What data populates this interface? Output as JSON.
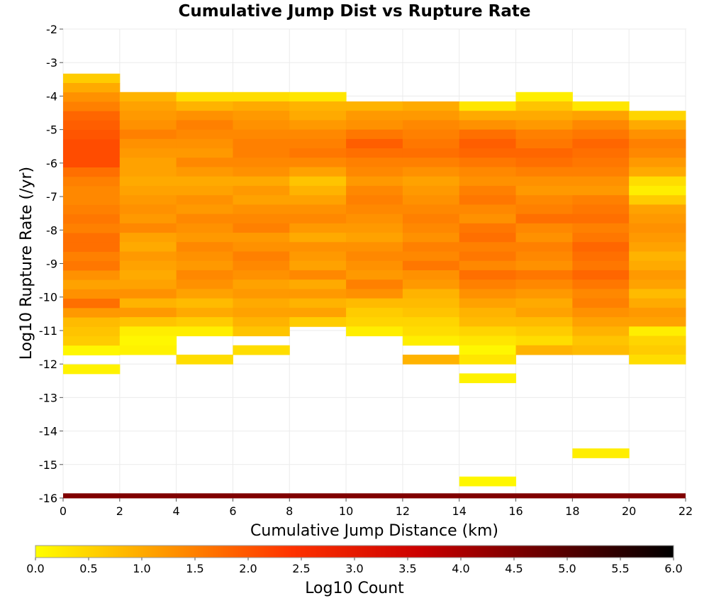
{
  "chart_data": {
    "type": "heatmap",
    "title": "Cumulative Jump Dist vs Rupture Rate",
    "xlabel": "Cumulative Jump Distance (km)",
    "ylabel": "Log10 Rupture Rate (/yr)",
    "xlim": [
      0,
      22
    ],
    "ylim": [
      -16,
      -2
    ],
    "x_bin_width": 2,
    "y_bin_height": 0.28,
    "x_ticks": [
      "0",
      "2",
      "4",
      "6",
      "8",
      "10",
      "12",
      "14",
      "16",
      "18",
      "20",
      "22"
    ],
    "y_ticks": [
      "-2",
      "-3",
      "-4",
      "-5",
      "-6",
      "-7",
      "-8",
      "-9",
      "-10",
      "-11",
      "-12",
      "-13",
      "-14",
      "-15",
      "-16"
    ],
    "grid": true,
    "colorbar": {
      "label": "Log10 Count",
      "min": 0.0,
      "max": 6.0,
      "ticks": [
        "0.0",
        "0.5",
        "1.0",
        "1.5",
        "2.0",
        "2.5",
        "3.0",
        "3.5",
        "4.0",
        "4.5",
        "5.0",
        "5.5",
        "6.0"
      ],
      "colors": [
        "#ffff00",
        "#ff9900",
        "#ff3300",
        "#cc0000",
        "#660000",
        "#000000"
      ]
    },
    "columns": [
      {
        "x": 0,
        "y_top": -3.33,
        "values": [
          0.6,
          1.0,
          1.3,
          1.5,
          1.8,
          1.9,
          2.0,
          2.1,
          2.1,
          2.1,
          1.7,
          1.5,
          1.4,
          1.4,
          1.5,
          1.6,
          1.5,
          1.7,
          1.7,
          1.5,
          1.6,
          1.3,
          1.1,
          1.3,
          1.7,
          1.2,
          0.8,
          0.7,
          0.6,
          0.1,
          null,
          0.15
        ]
      },
      {
        "x": 2,
        "y_top": -3.88,
        "values": [
          0.9,
          1.1,
          1.2,
          1.3,
          1.5,
          1.3,
          1.2,
          1.1,
          1.1,
          1.0,
          1.1,
          1.2,
          1.3,
          1.2,
          1.4,
          1.1,
          1.0,
          1.2,
          1.1,
          1.0,
          1.1,
          1.3,
          0.9,
          1.2,
          0.7,
          0.2,
          0.1,
          0.15
        ]
      },
      {
        "x": 4,
        "y_top": -3.88,
        "values": [
          0.4,
          0.9,
          1.3,
          1.5,
          1.4,
          1.3,
          1.2,
          1.4,
          1.2,
          1.0,
          1.1,
          1.3,
          1.2,
          1.4,
          1.3,
          1.2,
          1.4,
          1.3,
          1.2,
          1.4,
          1.3,
          1.1,
          0.8,
          1.0,
          0.6,
          0.2,
          null,
          null,
          0.4
        ]
      },
      {
        "x": 6,
        "y_top": -3.88,
        "values": [
          0.4,
          1.0,
          1.2,
          1.3,
          1.4,
          1.5,
          1.5,
          1.4,
          1.3,
          1.0,
          1.2,
          1.1,
          1.3,
          1.4,
          1.5,
          1.2,
          1.3,
          1.5,
          1.4,
          1.3,
          1.1,
          1.2,
          1.0,
          1.1,
          0.9,
          0.7,
          null,
          0.4
        ]
      },
      {
        "x": 8,
        "y_top": -3.88,
        "values": [
          0.3,
          0.9,
          1.0,
          1.2,
          1.4,
          1.5,
          1.6,
          1.4,
          1.1,
          0.7,
          0.9,
          1.1,
          1.3,
          1.4,
          1.2,
          1.0,
          1.3,
          1.2,
          1.1,
          1.4,
          1.0,
          1.2,
          0.9,
          1.1,
          0.6
        ]
      },
      {
        "x": 10,
        "y_top": -4.16,
        "values": [
          0.9,
          1.2,
          1.3,
          1.6,
          1.9,
          1.7,
          1.5,
          1.4,
          1.2,
          1.4,
          1.5,
          1.4,
          1.3,
          1.2,
          1.1,
          1.3,
          1.4,
          1.3,
          1.2,
          1.5,
          1.3,
          0.8,
          0.6,
          0.5,
          0.2
        ]
      },
      {
        "x": 12,
        "y_top": -4.16,
        "values": [
          1.0,
          1.2,
          1.4,
          1.5,
          1.6,
          1.7,
          1.5,
          1.3,
          1.1,
          1.2,
          1.3,
          1.4,
          1.5,
          1.4,
          1.3,
          1.5,
          1.4,
          1.6,
          1.3,
          1.2,
          0.9,
          0.8,
          0.7,
          0.5,
          0.4,
          0.2,
          null,
          0.9
        ]
      },
      {
        "x": 14,
        "y_top": -4.16,
        "values": [
          0.3,
          1.0,
          1.3,
          1.7,
          1.9,
          1.8,
          1.6,
          1.4,
          1.3,
          1.5,
          1.6,
          1.4,
          1.3,
          1.6,
          1.7,
          1.5,
          1.6,
          1.4,
          1.7,
          1.5,
          1.3,
          1.1,
          0.9,
          0.8,
          0.5,
          0.3,
          0.1,
          0.3,
          null,
          0.15,
          null,
          null,
          null,
          null,
          null,
          null,
          null,
          null,
          null,
          null,
          0.1
        ]
      },
      {
        "x": 16,
        "y_top": -3.88,
        "values": [
          0.2,
          0.7,
          1.0,
          1.2,
          1.5,
          1.6,
          1.8,
          1.7,
          1.5,
          1.3,
          1.2,
          1.4,
          1.5,
          1.7,
          1.4,
          1.3,
          1.5,
          1.4,
          1.3,
          1.6,
          1.4,
          1.2,
          1.0,
          1.1,
          0.8,
          0.6,
          0.4,
          0.9
        ]
      },
      {
        "x": 18,
        "y_top": -4.16,
        "values": [
          0.3,
          1.1,
          1.4,
          1.6,
          1.8,
          1.7,
          1.6,
          1.5,
          1.3,
          1.2,
          1.5,
          1.6,
          1.7,
          1.5,
          1.6,
          1.8,
          1.7,
          1.6,
          1.8,
          1.6,
          1.4,
          1.5,
          1.3,
          1.1,
          0.9,
          0.7,
          0.8,
          null,
          null,
          null,
          null,
          null,
          null,
          null,
          null,
          null,
          null,
          0.2
        ]
      },
      {
        "x": 20,
        "y_top": -4.44,
        "values": [
          0.5,
          1.0,
          1.3,
          1.5,
          1.4,
          1.2,
          1.0,
          0.4,
          0.2,
          0.6,
          1.1,
          1.2,
          1.3,
          1.2,
          1.1,
          0.9,
          1.0,
          1.2,
          1.1,
          0.8,
          1.0,
          1.2,
          1.1,
          0.2,
          0.5,
          0.6,
          0.4
        ]
      }
    ],
    "bottom_row": {
      "y": -16,
      "value": 4.5
    }
  }
}
